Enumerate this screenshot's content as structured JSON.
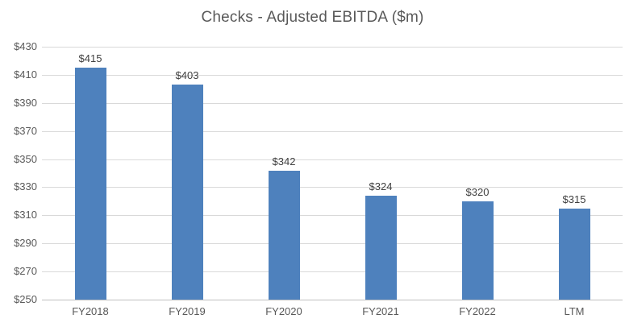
{
  "chart_data": {
    "type": "bar",
    "title": "Checks - Adjusted EBITDA ($m)",
    "categories": [
      "FY2018",
      "FY2019",
      "FY2020",
      "FY2021",
      "FY2022",
      "LTM"
    ],
    "values": [
      415,
      403,
      342,
      324,
      320,
      315
    ],
    "data_labels": [
      "$415",
      "$403",
      "$342",
      "$324",
      "$320",
      "$315"
    ],
    "xlabel": "",
    "ylabel": "",
    "ylim": [
      250,
      430
    ],
    "ytick_step": 20,
    "ytick_labels": [
      "$250",
      "$270",
      "$290",
      "$310",
      "$330",
      "$350",
      "$370",
      "$390",
      "$410",
      "$430"
    ],
    "grid": true,
    "legend_position": "none",
    "colors": {
      "bar_fill": "#4E81BD",
      "title_text": "#595959",
      "axis_tick_text": "#595959",
      "data_label_text": "#404040",
      "gridline": "#D9D9D9",
      "axis_line": "#BFBFBF"
    }
  }
}
